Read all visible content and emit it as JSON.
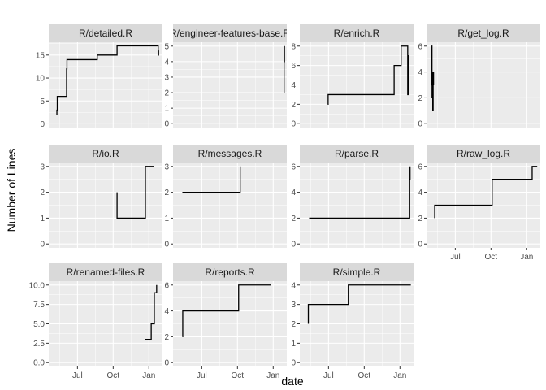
{
  "chart_data": {
    "type": "line",
    "facet_layout": "4 columns",
    "xlabel": "date",
    "ylabel": "Number of Lines",
    "x_ticks": [
      "2018-07-01",
      "2018-10-01",
      "2019-01-01"
    ],
    "x_tick_labels": [
      "Jul",
      "Oct",
      "Jan"
    ],
    "x_range": [
      "2018-04-18",
      "2019-02-05"
    ],
    "grid": true,
    "colors": {
      "panel_background": "#ebebeb",
      "strip_background": "#d9d9d9",
      "grid_line": "#ffffff",
      "line": "#000000"
    },
    "panels": [
      {
        "title": "R/detailed.R",
        "ylim": [
          -0.8,
          17.8
        ],
        "y_ticks": [
          0,
          5,
          10,
          15
        ],
        "y_tick_labels": [
          "0",
          "5",
          "10",
          "15"
        ],
        "points": [
          [
            "2018-05-08",
            2
          ],
          [
            "2018-05-09",
            3
          ],
          [
            "2018-05-10",
            4
          ],
          [
            "2018-05-10",
            6
          ],
          [
            "2018-06-03",
            6
          ],
          [
            "2018-06-03",
            12
          ],
          [
            "2018-06-04",
            14
          ],
          [
            "2018-08-21",
            14
          ],
          [
            "2018-08-21",
            15
          ],
          [
            "2018-10-11",
            15
          ],
          [
            "2018-10-11",
            17
          ],
          [
            "2019-01-25",
            17
          ],
          [
            "2019-01-25",
            15
          ],
          [
            "2019-01-26",
            16
          ]
        ]
      },
      {
        "title": "R/engineer-features-base.R",
        "ylim": [
          -0.25,
          5.25
        ],
        "y_ticks": [
          0,
          1,
          2,
          3,
          4,
          5
        ],
        "y_tick_labels": [
          "0",
          "1",
          "2",
          "3",
          "4",
          "5"
        ],
        "points": [
          [
            "2019-01-29",
            2
          ],
          [
            "2019-01-29",
            4
          ],
          [
            "2019-01-30",
            4
          ],
          [
            "2019-01-30",
            5
          ]
        ]
      },
      {
        "title": "R/enrich.R",
        "ylim": [
          -0.4,
          8.4
        ],
        "y_ticks": [
          0,
          2,
          4,
          6,
          8
        ],
        "y_tick_labels": [
          "0",
          "2",
          "4",
          "6",
          "8"
        ],
        "points": [
          [
            "2018-06-29",
            2
          ],
          [
            "2018-06-30",
            3
          ],
          [
            "2018-12-17",
            3
          ],
          [
            "2018-12-17",
            6
          ],
          [
            "2019-01-04",
            6
          ],
          [
            "2019-01-04",
            8
          ],
          [
            "2019-01-20",
            8
          ],
          [
            "2019-01-21",
            3
          ],
          [
            "2019-01-22",
            7
          ],
          [
            "2019-01-23",
            3
          ]
        ]
      },
      {
        "title": "R/get_log.R",
        "ylim": [
          -0.3,
          6.3
        ],
        "y_ticks": [
          0,
          2,
          4,
          6
        ],
        "y_tick_labels": [
          "0",
          "2",
          "4",
          "6"
        ],
        "points": [
          [
            "2018-05-01",
            2
          ],
          [
            "2018-05-01",
            6
          ],
          [
            "2018-05-02",
            3
          ],
          [
            "2018-05-03",
            4
          ],
          [
            "2018-05-04",
            1
          ],
          [
            "2018-05-05",
            4
          ],
          [
            "2018-05-06",
            3
          ]
        ]
      },
      {
        "title": "R/io.R",
        "ylim": [
          -0.15,
          3.15
        ],
        "y_ticks": [
          0,
          1,
          2,
          3
        ],
        "y_tick_labels": [
          "0",
          "1",
          "2",
          "3"
        ],
        "points": [
          [
            "2018-10-11",
            2
          ],
          [
            "2018-10-11",
            1
          ],
          [
            "2018-12-23",
            1
          ],
          [
            "2018-12-23",
            3
          ],
          [
            "2019-01-15",
            3
          ]
        ]
      },
      {
        "title": "R/messages.R",
        "ylim": [
          -0.15,
          3.15
        ],
        "y_ticks": [
          0,
          1,
          2,
          3
        ],
        "y_tick_labels": [
          "0",
          "1",
          "2",
          "3"
        ],
        "points": [
          [
            "2018-05-12",
            2
          ],
          [
            "2018-10-08",
            2
          ],
          [
            "2018-10-08",
            3
          ]
        ]
      },
      {
        "title": "R/parse.R",
        "ylim": [
          -0.3,
          6.3
        ],
        "y_ticks": [
          0,
          2,
          4,
          6
        ],
        "y_tick_labels": [
          "0",
          "2",
          "4",
          "6"
        ],
        "points": [
          [
            "2018-05-12",
            2
          ],
          [
            "2019-01-26",
            2
          ],
          [
            "2019-01-26",
            5
          ],
          [
            "2019-01-27",
            6
          ]
        ]
      },
      {
        "title": "R/raw_log.R",
        "ylim": [
          -0.3,
          6.3
        ],
        "y_ticks": [
          0,
          2,
          4,
          6
        ],
        "y_tick_labels": [
          "0",
          "2",
          "4",
          "6"
        ],
        "points": [
          [
            "2018-05-09",
            2
          ],
          [
            "2018-05-09",
            3
          ],
          [
            "2018-10-04",
            3
          ],
          [
            "2018-10-04",
            5
          ],
          [
            "2019-01-15",
            5
          ],
          [
            "2019-01-15",
            6
          ],
          [
            "2019-01-28",
            6
          ]
        ]
      },
      {
        "title": "R/renamed-files.R",
        "ylim": [
          -0.5,
          10.5
        ],
        "y_ticks": [
          0,
          2.5,
          5,
          7.5,
          10
        ],
        "y_tick_labels": [
          "0.0",
          "2.5",
          "5.0",
          "7.5",
          "10.0"
        ],
        "points": [
          [
            "2018-12-21",
            3
          ],
          [
            "2019-01-07",
            3
          ],
          [
            "2019-01-07",
            5
          ],
          [
            "2019-01-15",
            5
          ],
          [
            "2019-01-15",
            9
          ],
          [
            "2019-01-20",
            9
          ],
          [
            "2019-01-21",
            10
          ]
        ]
      },
      {
        "title": "R/reports.R",
        "ylim": [
          -0.3,
          6.3
        ],
        "y_ticks": [
          0,
          2,
          4,
          6
        ],
        "y_tick_labels": [
          "0",
          "2",
          "4",
          "6"
        ],
        "points": [
          [
            "2018-05-12",
            2
          ],
          [
            "2018-05-13",
            4
          ],
          [
            "2018-10-04",
            4
          ],
          [
            "2018-10-04",
            6
          ],
          [
            "2018-12-26",
            6
          ]
        ]
      },
      {
        "title": "R/simple.R",
        "ylim": [
          -0.2,
          4.2
        ],
        "y_ticks": [
          0,
          1,
          2,
          3,
          4
        ],
        "y_tick_labels": [
          "0",
          "1",
          "2",
          "3",
          "4"
        ],
        "points": [
          [
            "2018-05-10",
            2
          ],
          [
            "2018-05-10",
            3
          ],
          [
            "2018-08-21",
            3
          ],
          [
            "2018-08-21",
            4
          ],
          [
            "2019-01-29",
            4
          ]
        ]
      }
    ]
  }
}
